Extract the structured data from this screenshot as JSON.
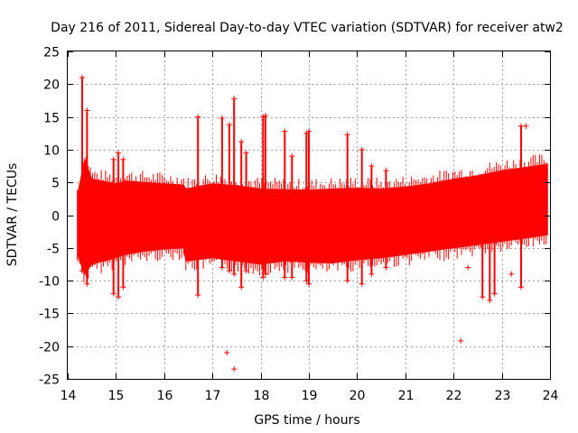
{
  "chart_data": {
    "type": "scatter",
    "title": "Day 216 of 2011, Sidereal Day-to-day VTEC variation (SDTVAR) for receiver atw2",
    "xlabel": "GPS time / hours",
    "ylabel": "SDTVAR / TECUs",
    "xlim": [
      14,
      24
    ],
    "ylim": [
      -25,
      25
    ],
    "grid": true,
    "x_ticks": [
      14,
      15,
      16,
      17,
      18,
      19,
      20,
      21,
      22,
      23,
      24
    ],
    "y_ticks": [
      25,
      20,
      15,
      10,
      5,
      0,
      -5,
      -10,
      -15,
      -20,
      -25
    ],
    "x_tick_labels": [
      "14",
      "15",
      "16",
      "17",
      "18",
      "19",
      "20",
      "21",
      "22",
      "23",
      "24"
    ],
    "y_tick_labels": [
      "25",
      "20",
      "15",
      "10",
      "5",
      "0",
      "-5",
      "-10",
      "-15",
      "-20",
      "-25"
    ],
    "marker_color": "#ff0000",
    "band": {
      "description": "dense point cloud (upper and lower envelope, TECU)",
      "x": [
        14.2,
        14.35,
        14.5,
        15.0,
        15.2,
        15.6,
        16.0,
        16.4,
        16.45,
        17.0,
        17.5,
        18.0,
        18.5,
        19.0,
        19.5,
        20.0,
        20.5,
        21.0,
        21.5,
        22.0,
        22.5,
        23.0,
        23.5,
        23.95
      ],
      "upper": [
        3.0,
        8.5,
        5.5,
        4.8,
        5.2,
        5.0,
        4.8,
        4.6,
        4.0,
        4.8,
        4.5,
        4.0,
        3.9,
        3.8,
        4.0,
        4.1,
        4.0,
        4.3,
        4.8,
        5.5,
        6.0,
        6.8,
        7.3,
        7.8
      ],
      "lower": [
        -6.0,
        -9.0,
        -7.5,
        -6.5,
        -6.0,
        -5.5,
        -5.2,
        -5.0,
        -7.0,
        -6.5,
        -7.0,
        -7.5,
        -7.0,
        -7.2,
        -7.3,
        -6.8,
        -6.5,
        -6.0,
        -5.5,
        -5.0,
        -4.5,
        -4.0,
        -3.5,
        -3.0
      ]
    },
    "spikes": {
      "x": [
        14.3,
        14.4,
        14.95,
        15.05,
        15.15,
        16.7,
        17.2,
        17.35,
        17.45,
        17.6,
        17.7,
        18.05,
        18.1,
        18.5,
        18.65,
        18.95,
        19.0,
        19.8,
        20.1,
        20.3,
        20.6,
        22.6,
        22.75,
        22.85,
        23.4
      ],
      "top": [
        21,
        16,
        8.5,
        9.5,
        8.5,
        15.0,
        14.8,
        13.8,
        17.8,
        11.2,
        9.5,
        15.0,
        15.2,
        12.8,
        9.0,
        12.5,
        12.8,
        12.3,
        10.0,
        7.5,
        6.8,
        4.5,
        5.0,
        4.0,
        13.6
      ],
      "bot": [
        -8.5,
        -10.5,
        -12.0,
        -12.5,
        -11.0,
        -12.2,
        -8.0,
        -8.5,
        -9.0,
        -11.0,
        -8.5,
        -9.5,
        -9.0,
        -9.5,
        -9.5,
        -10.0,
        -10.5,
        -10.0,
        -10.5,
        -9.0,
        -8.0,
        -12.5,
        -13.0,
        -12.0,
        -11.0
      ]
    },
    "outliers": {
      "x": [
        17.3,
        17.45,
        22.15,
        23.5,
        23.2,
        22.3,
        14.3
      ],
      "y": [
        -21.0,
        -23.5,
        -19.2,
        13.6,
        -9.0,
        -8.0,
        21.0
      ]
    }
  }
}
